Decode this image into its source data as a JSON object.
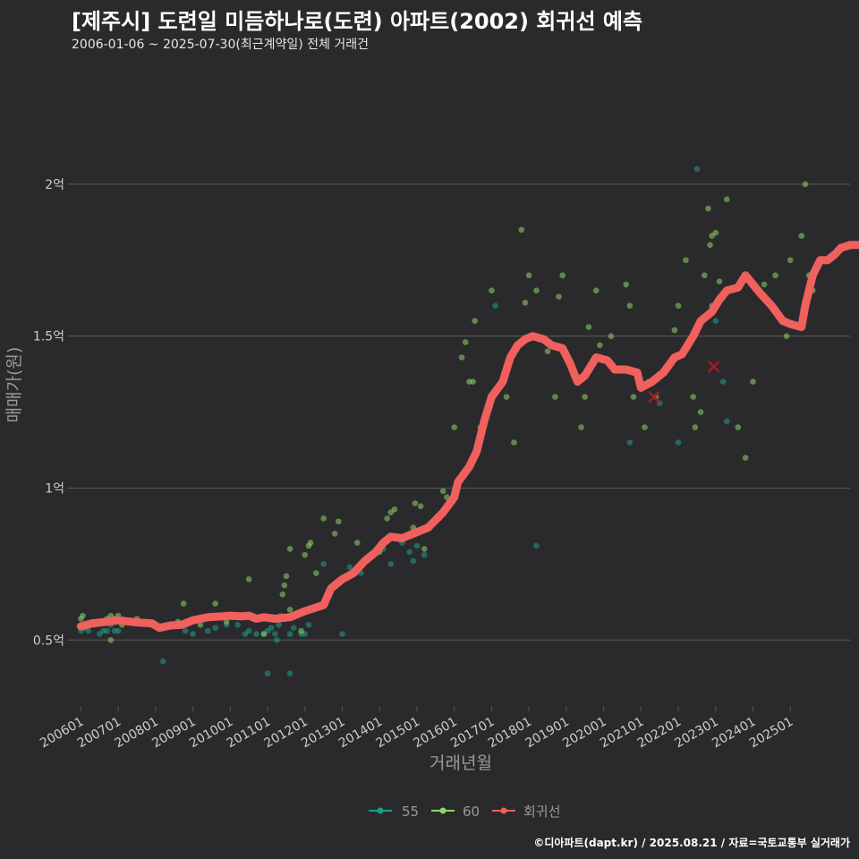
{
  "title": "[제주시] 도련일 미듬하나로(도련) 아파트(2002) 회귀선 예측",
  "subtitle": "2006-01-06 ~ 2025-07-30(최근계약일) 전체 거래건",
  "footer": "©디아파트(dapt.kr) / 2025.08.21 / 자료=국토교통부 실거래가",
  "colors": {
    "background": "#2a2a2c",
    "grid": "#5a5a5a",
    "s55": "#1f9e89",
    "s60": "#8fd46b",
    "regression": "#f0605d",
    "predict": "#a01d25",
    "axis_text": "#cccccc"
  },
  "chart_data": {
    "type": "scatter",
    "title": "[제주시] 도련일 미듬하나로(도련) 아파트(2002) 회귀선 예측",
    "xlabel": "거래년월",
    "ylabel": "매매가(원)",
    "xlim": [
      2005.75,
      2026.6
    ],
    "ylim": [
      0.28,
      2.4
    ],
    "y_unit": "억",
    "x_ticks": [
      "200601",
      "200701",
      "200801",
      "200901",
      "201001",
      "201101",
      "201201",
      "201301",
      "201401",
      "201501",
      "201601",
      "201701",
      "201801",
      "201901",
      "202001",
      "202101",
      "202201",
      "202301",
      "202401",
      "202501"
    ],
    "y_ticks": [
      {
        "value": 0.5,
        "label": "0.5억"
      },
      {
        "value": 1.0,
        "label": "1억"
      },
      {
        "value": 1.5,
        "label": "1.5억"
      },
      {
        "value": 2.0,
        "label": "2억"
      }
    ],
    "legend": [
      "55",
      "60",
      "회귀선"
    ],
    "legend_position": "bottom",
    "series": [
      {
        "name": "55",
        "type": "scatter",
        "points": [
          [
            2006.0,
            0.53
          ],
          [
            2006.1,
            0.54
          ],
          [
            2006.2,
            0.53
          ],
          [
            2006.35,
            0.55
          ],
          [
            2006.5,
            0.52
          ],
          [
            2006.6,
            0.53
          ],
          [
            2006.7,
            0.53
          ],
          [
            2006.8,
            0.55
          ],
          [
            2006.9,
            0.53
          ],
          [
            2007.0,
            0.53
          ],
          [
            2008.2,
            0.43
          ],
          [
            2008.8,
            0.53
          ],
          [
            2009.0,
            0.52
          ],
          [
            2009.4,
            0.53
          ],
          [
            2009.6,
            0.54
          ],
          [
            2009.9,
            0.55
          ],
          [
            2010.2,
            0.55
          ],
          [
            2010.4,
            0.52
          ],
          [
            2010.5,
            0.53
          ],
          [
            2010.7,
            0.52
          ],
          [
            2010.9,
            0.52
          ],
          [
            2011.0,
            0.53
          ],
          [
            2011.1,
            0.54
          ],
          [
            2011.2,
            0.52
          ],
          [
            2011.25,
            0.5
          ],
          [
            2011.3,
            0.55
          ],
          [
            2011.35,
            0.58
          ],
          [
            2011.6,
            0.52
          ],
          [
            2011.7,
            0.54
          ],
          [
            2011.9,
            0.52
          ],
          [
            2012.0,
            0.52
          ],
          [
            2011.6,
            0.39
          ],
          [
            2011.0,
            0.39
          ],
          [
            2012.1,
            0.55
          ],
          [
            2012.5,
            0.75
          ],
          [
            2013.0,
            0.52
          ],
          [
            2013.2,
            0.74
          ],
          [
            2013.5,
            0.72
          ],
          [
            2014.1,
            0.8
          ],
          [
            2014.3,
            0.75
          ],
          [
            2014.6,
            0.82
          ],
          [
            2014.8,
            0.79
          ],
          [
            2014.9,
            0.76
          ],
          [
            2015.0,
            0.81
          ],
          [
            2015.2,
            0.78
          ],
          [
            2015.6,
            0.9
          ],
          [
            2017.1,
            1.6
          ],
          [
            2018.2,
            0.81
          ],
          [
            2020.7,
            1.15
          ],
          [
            2021.2,
            1.35
          ],
          [
            2021.5,
            1.28
          ],
          [
            2022.0,
            1.15
          ],
          [
            2022.5,
            2.05
          ],
          [
            2023.0,
            1.55
          ],
          [
            2023.2,
            1.35
          ],
          [
            2023.3,
            1.22
          ]
        ]
      },
      {
        "name": "60",
        "type": "scatter",
        "points": [
          [
            2006.0,
            0.57
          ],
          [
            2006.05,
            0.58
          ],
          [
            2006.7,
            0.57
          ],
          [
            2006.8,
            0.58
          ],
          [
            2006.9,
            0.57
          ],
          [
            2007.0,
            0.58
          ],
          [
            2007.1,
            0.55
          ],
          [
            2006.8,
            0.5
          ],
          [
            2007.5,
            0.57
          ],
          [
            2008.6,
            0.56
          ],
          [
            2008.75,
            0.62
          ],
          [
            2009.2,
            0.55
          ],
          [
            2009.6,
            0.62
          ],
          [
            2009.9,
            0.56
          ],
          [
            2010.3,
            0.58
          ],
          [
            2010.5,
            0.7
          ],
          [
            2010.9,
            0.52
          ],
          [
            2011.4,
            0.65
          ],
          [
            2011.45,
            0.68
          ],
          [
            2011.5,
            0.71
          ],
          [
            2011.6,
            0.8
          ],
          [
            2011.9,
            0.53
          ],
          [
            2011.6,
            0.6
          ],
          [
            2012.0,
            0.78
          ],
          [
            2012.1,
            0.81
          ],
          [
            2012.15,
            0.82
          ],
          [
            2012.3,
            0.72
          ],
          [
            2012.5,
            0.9
          ],
          [
            2012.8,
            0.85
          ],
          [
            2012.9,
            0.89
          ],
          [
            2013.4,
            0.82
          ],
          [
            2014.0,
            0.79
          ],
          [
            2014.2,
            0.9
          ],
          [
            2014.3,
            0.92
          ],
          [
            2014.4,
            0.93
          ],
          [
            2014.9,
            0.87
          ],
          [
            2014.95,
            0.95
          ],
          [
            2015.0,
            0.86
          ],
          [
            2015.1,
            0.94
          ],
          [
            2015.2,
            0.8
          ],
          [
            2015.7,
            0.99
          ],
          [
            2015.8,
            0.97
          ],
          [
            2016.0,
            1.2
          ],
          [
            2016.2,
            1.43
          ],
          [
            2016.3,
            1.48
          ],
          [
            2016.4,
            1.35
          ],
          [
            2016.5,
            1.35
          ],
          [
            2016.55,
            1.55
          ],
          [
            2016.7,
            1.2
          ],
          [
            2017.0,
            1.65
          ],
          [
            2017.4,
            1.3
          ],
          [
            2017.6,
            1.15
          ],
          [
            2017.8,
            1.85
          ],
          [
            2017.9,
            1.61
          ],
          [
            2018.0,
            1.7
          ],
          [
            2018.2,
            1.65
          ],
          [
            2018.5,
            1.45
          ],
          [
            2018.7,
            1.3
          ],
          [
            2018.8,
            1.63
          ],
          [
            2018.9,
            1.7
          ],
          [
            2019.4,
            1.2
          ],
          [
            2019.5,
            1.3
          ],
          [
            2019.6,
            1.53
          ],
          [
            2019.8,
            1.65
          ],
          [
            2019.9,
            1.47
          ],
          [
            2020.2,
            1.5
          ],
          [
            2020.6,
            1.67
          ],
          [
            2020.7,
            1.6
          ],
          [
            2020.8,
            1.3
          ],
          [
            2021.1,
            1.2
          ],
          [
            2021.4,
            1.3
          ],
          [
            2021.6,
            1.38
          ],
          [
            2021.9,
            1.52
          ],
          [
            2022.0,
            1.6
          ],
          [
            2022.2,
            1.75
          ],
          [
            2022.4,
            1.3
          ],
          [
            2022.45,
            1.2
          ],
          [
            2022.6,
            1.25
          ],
          [
            2022.7,
            1.7
          ],
          [
            2022.8,
            1.92
          ],
          [
            2022.85,
            1.8
          ],
          [
            2022.9,
            1.83
          ],
          [
            2023.0,
            1.84
          ],
          [
            2022.9,
            1.6
          ],
          [
            2023.1,
            1.68
          ],
          [
            2023.3,
            1.95
          ],
          [
            2023.6,
            1.2
          ],
          [
            2023.8,
            1.1
          ],
          [
            2024.0,
            1.35
          ],
          [
            2024.3,
            1.67
          ],
          [
            2024.5,
            1.6
          ],
          [
            2024.6,
            1.7
          ],
          [
            2024.9,
            1.5
          ],
          [
            2025.3,
            1.83
          ],
          [
            2025.4,
            2.0
          ],
          [
            2025.6,
            1.65
          ],
          [
            2025.5,
            1.7
          ],
          [
            2025.0,
            1.75
          ]
        ]
      },
      {
        "name": "회귀선",
        "type": "line",
        "points": [
          [
            2006.0,
            0.545
          ],
          [
            2006.3,
            0.555
          ],
          [
            2006.7,
            0.56
          ],
          [
            2007.0,
            0.565
          ],
          [
            2007.5,
            0.558
          ],
          [
            2007.9,
            0.555
          ],
          [
            2008.1,
            0.54
          ],
          [
            2008.4,
            0.548
          ],
          [
            2008.7,
            0.55
          ],
          [
            2009.0,
            0.565
          ],
          [
            2009.4,
            0.575
          ],
          [
            2009.8,
            0.578
          ],
          [
            2010.0,
            0.58
          ],
          [
            2010.3,
            0.578
          ],
          [
            2010.5,
            0.58
          ],
          [
            2010.7,
            0.57
          ],
          [
            2010.9,
            0.575
          ],
          [
            2011.2,
            0.57
          ],
          [
            2011.6,
            0.575
          ],
          [
            2012.0,
            0.595
          ],
          [
            2012.5,
            0.615
          ],
          [
            2012.7,
            0.67
          ],
          [
            2013.0,
            0.7
          ],
          [
            2013.3,
            0.72
          ],
          [
            2013.6,
            0.76
          ],
          [
            2013.9,
            0.79
          ],
          [
            2014.1,
            0.82
          ],
          [
            2014.3,
            0.84
          ],
          [
            2014.6,
            0.835
          ],
          [
            2014.9,
            0.85
          ],
          [
            2015.3,
            0.87
          ],
          [
            2015.7,
            0.92
          ],
          [
            2016.0,
            0.97
          ],
          [
            2016.1,
            1.02
          ],
          [
            2016.4,
            1.07
          ],
          [
            2016.6,
            1.12
          ],
          [
            2016.8,
            1.22
          ],
          [
            2017.0,
            1.3
          ],
          [
            2017.3,
            1.35
          ],
          [
            2017.5,
            1.43
          ],
          [
            2017.7,
            1.47
          ],
          [
            2017.9,
            1.49
          ],
          [
            2018.1,
            1.5
          ],
          [
            2018.4,
            1.49
          ],
          [
            2018.6,
            1.47
          ],
          [
            2018.9,
            1.46
          ],
          [
            2019.1,
            1.41
          ],
          [
            2019.3,
            1.35
          ],
          [
            2019.5,
            1.37
          ],
          [
            2019.8,
            1.43
          ],
          [
            2020.1,
            1.42
          ],
          [
            2020.3,
            1.39
          ],
          [
            2020.6,
            1.39
          ],
          [
            2020.9,
            1.38
          ],
          [
            2021.0,
            1.33
          ],
          [
            2021.3,
            1.35
          ],
          [
            2021.6,
            1.38
          ],
          [
            2021.9,
            1.43
          ],
          [
            2022.1,
            1.44
          ],
          [
            2022.4,
            1.5
          ],
          [
            2022.6,
            1.55
          ],
          [
            2022.9,
            1.58
          ],
          [
            2023.1,
            1.62
          ],
          [
            2023.3,
            1.65
          ],
          [
            2023.6,
            1.66
          ],
          [
            2023.8,
            1.7
          ],
          [
            2024.0,
            1.67
          ],
          [
            2024.2,
            1.64
          ],
          [
            2024.5,
            1.6
          ],
          [
            2024.8,
            1.55
          ],
          [
            2025.0,
            1.54
          ],
          [
            2025.3,
            1.53
          ],
          [
            2025.4,
            1.6
          ],
          [
            2025.6,
            1.7
          ],
          [
            2025.8,
            1.75
          ],
          [
            2026.0,
            1.75
          ],
          [
            2026.2,
            1.77
          ],
          [
            2026.35,
            1.79
          ],
          [
            2026.6,
            1.8
          ],
          [
            2026.9,
            1.8
          ]
        ]
      },
      {
        "name": "predicted",
        "type": "marker",
        "points": [
          [
            2021.35,
            1.3
          ],
          [
            2022.95,
            1.4
          ]
        ]
      }
    ]
  }
}
